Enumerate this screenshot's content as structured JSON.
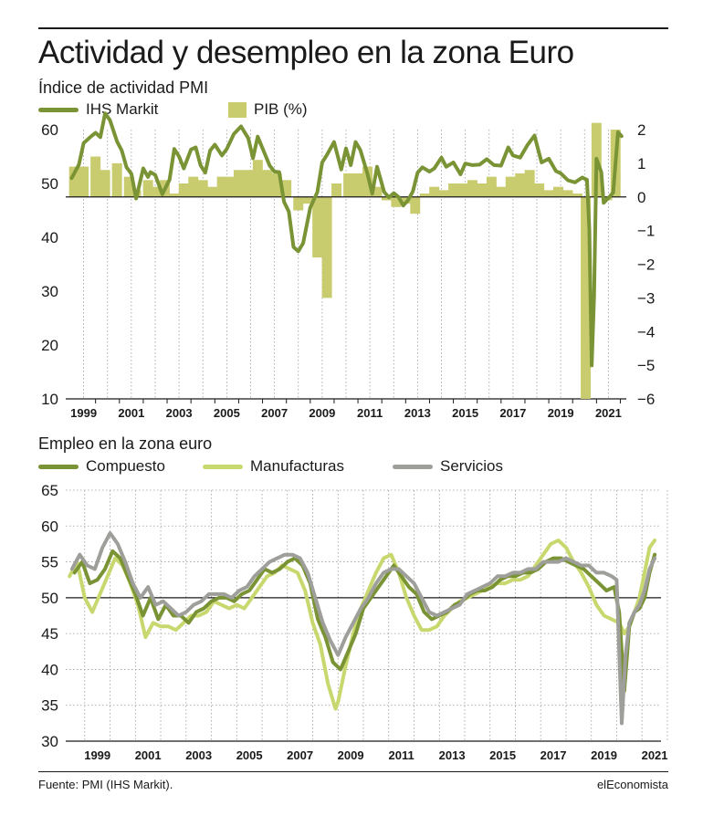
{
  "title": "Actividad y desempleo en la zona Euro",
  "source": "Fuente: PMI (IHS Markit).",
  "brand": "elEconomista",
  "colors": {
    "composite": "#7a9335",
    "manufacturing": "#c9d86e",
    "services": "#9e9e9a",
    "gdp": "#c9cc6e"
  },
  "chart_data": [
    {
      "type": "line",
      "title": "Índice de actividad PMI",
      "x_axis_labels": [
        "1999",
        "2001",
        "2003",
        "2005",
        "2007",
        "2009",
        "2011",
        "2013",
        "2015",
        "2017",
        "2019",
        "2021"
      ],
      "ylim_left": [
        10,
        60
      ],
      "yticks_left": [
        "10",
        "20",
        "30",
        "40",
        "50",
        "60"
      ],
      "ylim_right": [
        -6,
        2
      ],
      "yticks_right": [
        "−6",
        "−5",
        "−4",
        "−3",
        "−2",
        "−1",
        "0",
        "1",
        "2"
      ],
      "series": [
        {
          "name": "IHS Markit",
          "x": [
            1998.5,
            1998.8,
            1999.0,
            1999.3,
            1999.5,
            1999.7,
            1999.9,
            2000.1,
            2000.4,
            2000.6,
            2000.8,
            2001.0,
            2001.2,
            2001.5,
            2001.7,
            2001.8,
            2002.0,
            2002.3,
            2002.6,
            2002.8,
            2003.0,
            2003.2,
            2003.5,
            2003.7,
            2003.9,
            2004.1,
            2004.3,
            2004.5,
            2004.8,
            2005.0,
            2005.3,
            2005.6,
            2005.9,
            2006.1,
            2006.3,
            2006.5,
            2006.8,
            2007.0,
            2007.2,
            2007.4,
            2007.6,
            2007.8,
            2008.0,
            2008.2,
            2008.5,
            2008.8,
            2009.0,
            2009.2,
            2009.5,
            2009.8,
            2010.0,
            2010.2,
            2010.4,
            2010.6,
            2010.9,
            2011.1,
            2011.3,
            2011.6,
            2011.8,
            2012.0,
            2012.2,
            2012.4,
            2012.6,
            2012.8,
            2013.0,
            2013.2,
            2013.5,
            2013.7,
            2014.0,
            2014.2,
            2014.5,
            2014.8,
            2015.0,
            2015.3,
            2015.6,
            2015.9,
            2016.2,
            2016.5,
            2016.8,
            2017.0,
            2017.3,
            2017.6,
            2017.9,
            2018.2,
            2018.5,
            2018.8,
            2019.0,
            2019.3,
            2019.6,
            2019.9,
            2020.1,
            2020.2,
            2020.3,
            2020.4,
            2020.5,
            2020.7,
            2020.8,
            2021.0,
            2021.2,
            2021.4,
            2021.55
          ],
          "values": [
            51.0,
            53.5,
            57.5,
            58.7,
            59.4,
            58.6,
            63.0,
            61.8,
            57.8,
            56.1,
            53.0,
            51.8,
            47.2,
            52.8,
            51.2,
            52.1,
            51.6,
            48.0,
            50.7,
            56.4,
            55.0,
            52.8,
            56.3,
            56.7,
            53.4,
            52.0,
            56.1,
            57.2,
            55.2,
            56.4,
            59.2,
            60.6,
            58.4,
            54.7,
            58.7,
            56.5,
            53.3,
            52.2,
            52.1,
            46.6,
            44.8,
            38.2,
            37.4,
            38.9,
            45.5,
            48.4,
            53.9,
            55.3,
            57.7,
            52.6,
            56.5,
            53.4,
            57.7,
            56.2,
            51.8,
            48.1,
            53.1,
            48.4,
            47.4,
            48.2,
            47.5,
            45.9,
            46.9,
            48.5,
            52.0,
            53.0,
            52.2,
            52.8,
            54.8,
            53.1,
            53.9,
            51.7,
            53.7,
            53.4,
            53.5,
            54.5,
            53.4,
            53.3,
            56.7,
            55.2,
            54.8,
            57.1,
            58.9,
            53.9,
            54.6,
            52.3,
            51.9,
            50.6,
            50.2,
            51.1,
            50.7,
            41.4,
            16.2,
            29.0,
            54.6,
            52.1,
            46.4,
            47.3,
            48.3,
            59.5,
            58.8
          ]
        },
        {
          "name": "PIB (%)",
          "type": "bar",
          "x": [
            1998.6,
            1999.0,
            1999.5,
            1999.9,
            2000.4,
            2000.9,
            2001.2,
            2001.7,
            2002.1,
            2002.4,
            2002.8,
            2003.2,
            2003.6,
            2004.0,
            2004.4,
            2004.8,
            2005.1,
            2005.5,
            2005.9,
            2006.3,
            2006.7,
            2007.1,
            2007.5,
            2008.0,
            2008.4,
            2008.8,
            2009.2,
            2009.6,
            2010.1,
            2010.5,
            2010.9,
            2011.3,
            2011.7,
            2012.1,
            2012.5,
            2012.9,
            2013.3,
            2013.7,
            2014.1,
            2014.5,
            2014.9,
            2015.3,
            2015.7,
            2016.1,
            2016.5,
            2016.9,
            2017.3,
            2017.7,
            2018.1,
            2018.5,
            2018.9,
            2019.3,
            2019.7,
            2020.05,
            2020.5,
            2020.95,
            2021.3
          ],
          "values": [
            0.9,
            0.9,
            1.2,
            0.8,
            1.0,
            0.6,
            0.2,
            0.5,
            0.3,
            0.5,
            0.1,
            0.4,
            0.6,
            0.5,
            0.3,
            0.6,
            0.6,
            0.8,
            0.8,
            1.1,
            0.8,
            0.7,
            0.5,
            -0.4,
            -0.2,
            -1.8,
            -3.0,
            0.4,
            0.7,
            0.7,
            0.9,
            0.3,
            -0.1,
            -0.3,
            -0.2,
            -0.5,
            0.1,
            0.3,
            0.2,
            0.4,
            0.4,
            0.5,
            0.4,
            0.6,
            0.3,
            0.6,
            0.7,
            0.8,
            0.4,
            0.2,
            0.3,
            0.2,
            0.1,
            -6.0,
            2.2,
            -0.1,
            2.0
          ]
        }
      ]
    },
    {
      "type": "line",
      "title": "Empleo en la zona euro",
      "x_axis_labels": [
        "1999",
        "2001",
        "2003",
        "2005",
        "2007",
        "2009",
        "2011",
        "2013",
        "2015",
        "2017",
        "2019",
        "2021"
      ],
      "ylim": [
        30,
        65
      ],
      "yticks": [
        "30",
        "35",
        "40",
        "45",
        "50",
        "55",
        "60",
        "65"
      ],
      "series": [
        {
          "name": "Compuesto",
          "x": [
            1998.6,
            1998.9,
            1999.2,
            1999.5,
            1999.8,
            2000.1,
            2000.4,
            2000.7,
            2001.0,
            2001.3,
            2001.6,
            2001.9,
            2002.2,
            2002.5,
            2002.8,
            2003.1,
            2003.4,
            2003.7,
            2004.0,
            2004.3,
            2004.6,
            2004.9,
            2005.2,
            2005.5,
            2005.8,
            2006.1,
            2006.4,
            2006.7,
            2007.0,
            2007.3,
            2007.6,
            2007.9,
            2008.2,
            2008.5,
            2008.8,
            2009.1,
            2009.4,
            2009.7,
            2010.0,
            2010.3,
            2010.6,
            2010.9,
            2011.2,
            2011.5,
            2011.8,
            2012.1,
            2012.4,
            2012.7,
            2013.0,
            2013.3,
            2013.6,
            2013.9,
            2014.2,
            2014.5,
            2014.8,
            2015.1,
            2015.4,
            2015.7,
            2016.0,
            2016.3,
            2016.6,
            2016.9,
            2017.2,
            2017.5,
            2017.8,
            2018.1,
            2018.4,
            2018.7,
            2019.0,
            2019.3,
            2019.6,
            2019.9,
            2020.1,
            2020.3,
            2020.5,
            2020.7,
            2020.9,
            2021.1,
            2021.3,
            2021.5
          ],
          "values": [
            53.5,
            55.0,
            52.0,
            52.5,
            54.0,
            56.5,
            55.5,
            53.0,
            50.5,
            47.5,
            50.0,
            47.0,
            49.0,
            47.5,
            47.5,
            46.5,
            48.0,
            48.5,
            49.5,
            50.0,
            50.0,
            49.5,
            50.5,
            51.0,
            52.5,
            54.0,
            53.5,
            54.0,
            55.0,
            55.5,
            54.5,
            52.0,
            47.0,
            44.5,
            41.0,
            40.0,
            42.5,
            45.0,
            48.5,
            50.0,
            51.5,
            53.0,
            54.5,
            53.0,
            51.5,
            50.5,
            48.0,
            47.0,
            47.5,
            48.0,
            49.0,
            49.5,
            50.5,
            51.0,
            51.0,
            51.5,
            52.5,
            53.0,
            53.0,
            53.5,
            53.5,
            54.0,
            55.0,
            55.5,
            55.5,
            55.0,
            54.5,
            54.0,
            53.0,
            52.0,
            51.0,
            51.5,
            48.0,
            37.0,
            46.0,
            48.0,
            48.5,
            50.0,
            53.5,
            56.0
          ]
        },
        {
          "name": "Manufacturas",
          "x": [
            1998.4,
            1998.7,
            1999.0,
            1999.3,
            1999.6,
            1999.9,
            2000.2,
            2000.5,
            2000.8,
            2001.1,
            2001.4,
            2001.7,
            2002.0,
            2002.3,
            2002.6,
            2002.9,
            2003.2,
            2003.5,
            2003.8,
            2004.1,
            2004.4,
            2004.7,
            2005.0,
            2005.3,
            2005.6,
            2005.9,
            2006.2,
            2006.5,
            2006.8,
            2007.1,
            2007.4,
            2007.7,
            2008.0,
            2008.3,
            2008.6,
            2008.9,
            2009.0,
            2009.3,
            2009.6,
            2009.9,
            2010.2,
            2010.5,
            2010.8,
            2011.1,
            2011.4,
            2011.7,
            2012.0,
            2012.3,
            2012.6,
            2012.9,
            2013.2,
            2013.5,
            2013.8,
            2014.1,
            2014.4,
            2014.7,
            2015.0,
            2015.3,
            2015.6,
            2015.9,
            2016.2,
            2016.5,
            2016.8,
            2017.1,
            2017.4,
            2017.7,
            2018.0,
            2018.3,
            2018.6,
            2018.9,
            2019.2,
            2019.5,
            2019.8,
            2020.1,
            2020.3,
            2020.5,
            2020.7,
            2020.9,
            2021.1,
            2021.3,
            2021.5
          ],
          "values": [
            53.0,
            55.0,
            50.0,
            48.0,
            50.5,
            53.0,
            55.5,
            54.5,
            52.0,
            49.0,
            44.5,
            46.5,
            46.0,
            46.0,
            45.5,
            46.5,
            47.5,
            47.5,
            48.0,
            49.5,
            49.0,
            48.5,
            49.0,
            48.5,
            50.0,
            51.5,
            53.0,
            53.5,
            54.5,
            54.0,
            53.5,
            51.0,
            46.5,
            43.5,
            38.0,
            34.5,
            35.5,
            40.5,
            45.0,
            48.5,
            51.0,
            53.5,
            55.5,
            56.0,
            53.5,
            50.0,
            47.5,
            45.5,
            45.5,
            46.0,
            47.5,
            48.5,
            49.5,
            50.0,
            50.5,
            51.0,
            51.5,
            52.0,
            52.0,
            52.5,
            52.5,
            53.0,
            54.5,
            56.0,
            57.5,
            58.0,
            57.0,
            55.0,
            53.5,
            51.5,
            49.0,
            47.5,
            47.0,
            46.5,
            45.0,
            46.0,
            48.0,
            50.0,
            53.5,
            57.0,
            58.0
          ]
        },
        {
          "name": "Servicios",
          "x": [
            1998.5,
            1998.8,
            1999.1,
            1999.4,
            1999.7,
            2000.0,
            2000.3,
            2000.6,
            2000.9,
            2001.2,
            2001.5,
            2001.8,
            2002.1,
            2002.4,
            2002.7,
            2003.0,
            2003.3,
            2003.6,
            2003.9,
            2004.2,
            2004.5,
            2004.8,
            2005.1,
            2005.4,
            2005.7,
            2006.0,
            2006.3,
            2006.6,
            2006.9,
            2007.2,
            2007.5,
            2007.8,
            2008.1,
            2008.4,
            2008.7,
            2009.0,
            2009.3,
            2009.6,
            2009.9,
            2010.2,
            2010.5,
            2010.8,
            2011.1,
            2011.4,
            2011.7,
            2012.0,
            2012.3,
            2012.6,
            2012.9,
            2013.2,
            2013.5,
            2013.8,
            2014.1,
            2014.4,
            2014.7,
            2015.0,
            2015.3,
            2015.6,
            2015.9,
            2016.2,
            2016.5,
            2016.8,
            2017.1,
            2017.4,
            2017.7,
            2018.0,
            2018.3,
            2018.6,
            2018.9,
            2019.2,
            2019.5,
            2019.8,
            2020.0,
            2020.2,
            2020.35,
            2020.5,
            2020.7,
            2020.9,
            2021.1,
            2021.3,
            2021.5
          ],
          "values": [
            54.0,
            56.0,
            54.5,
            54.0,
            57.0,
            59.0,
            57.5,
            55.0,
            52.0,
            50.0,
            51.5,
            49.0,
            49.5,
            48.5,
            47.5,
            48.0,
            49.0,
            49.5,
            50.5,
            50.5,
            50.5,
            50.0,
            51.0,
            51.5,
            53.0,
            54.0,
            55.0,
            55.5,
            56.0,
            56.0,
            55.5,
            53.5,
            50.0,
            46.5,
            44.0,
            42.0,
            44.5,
            46.5,
            48.5,
            50.0,
            52.0,
            53.5,
            54.0,
            54.0,
            53.0,
            52.0,
            50.0,
            48.0,
            47.5,
            48.0,
            48.5,
            49.0,
            50.5,
            51.0,
            51.5,
            52.0,
            53.0,
            53.0,
            53.5,
            53.5,
            54.0,
            54.0,
            55.0,
            55.0,
            55.0,
            55.5,
            55.0,
            54.5,
            54.5,
            53.5,
            53.5,
            53.0,
            52.5,
            32.5,
            42.0,
            46.5,
            48.0,
            49.0,
            51.0,
            54.0,
            55.5
          ]
        }
      ]
    }
  ]
}
